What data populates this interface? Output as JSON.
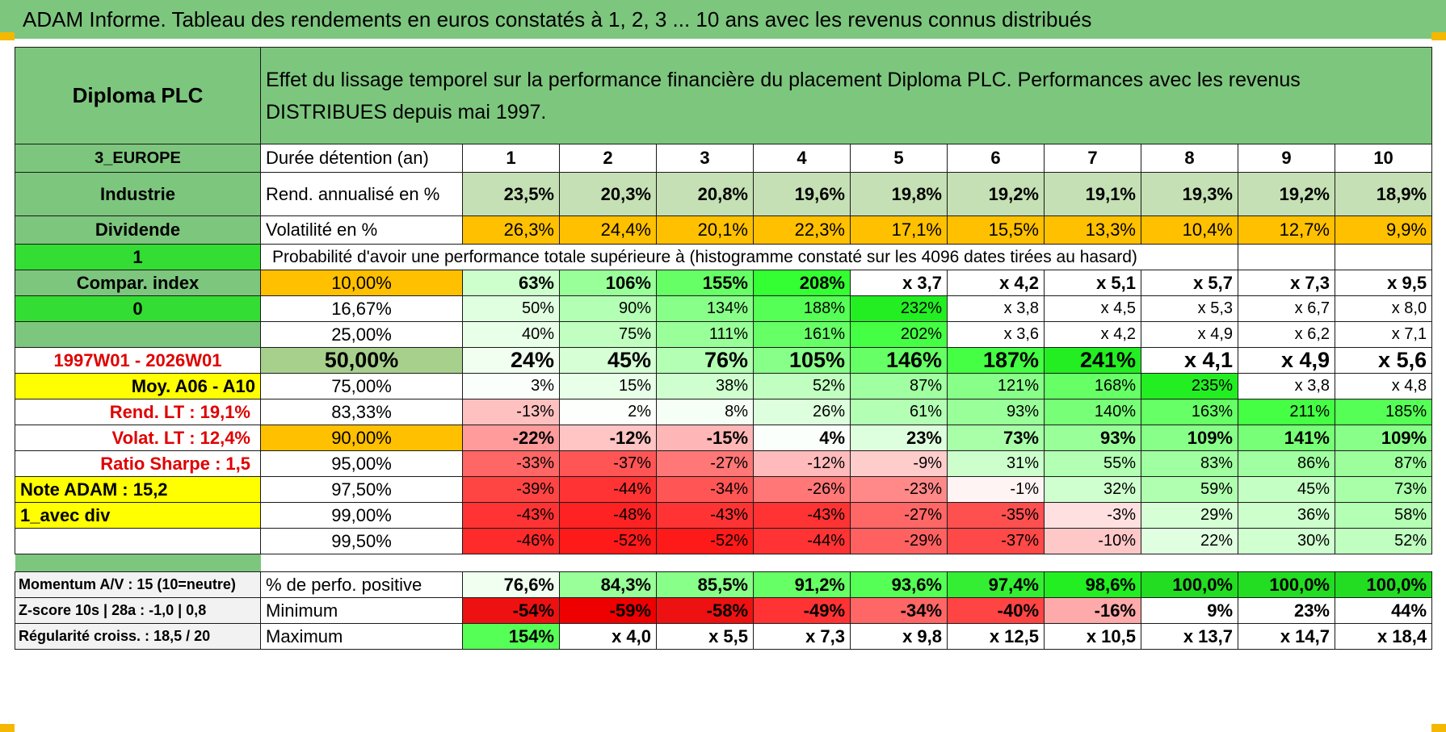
{
  "banner": "ADAM Informe. Tableau des rendements en euros constatés à 1, 2, 3 ... 10 ans avec les revenus connus distribués",
  "header": {
    "name": "Diploma PLC",
    "description": "Effet du lissage temporel sur la performance financière du placement Diploma PLC. Performances avec les revenus DISTRIBUES depuis mai 1997."
  },
  "sidebar": {
    "region": "3_EUROPE",
    "sector": "Industrie",
    "dividend": "Dividende",
    "one": "1",
    "compar": "Compar. index",
    "zero": "0",
    "period": "1997W01 - 2026W01",
    "moy": "Moy. A06 - A10",
    "rend_label": "Rend. LT :",
    "rend_value": "19,1%",
    "volat_label": "Volat. LT :",
    "volat_value": "12,4%",
    "sharpe_label": "Ratio Sharpe :",
    "sharpe_value": "1,5",
    "note": "Note ADAM : 15,2",
    "div_mode": "1_avec div",
    "momentum": "Momentum A/V : 15 (10=neutre)",
    "zscore": "Z-score 10s | 28a : -1,0 | 0,8",
    "regularite": "Régularité croiss. : 18,5 / 20"
  },
  "labels": {
    "duree": "Durée détention (an)",
    "rend": "Rend. annualisé en %",
    "vol": "Volatilité en %",
    "proba": "Probabilité d'avoir une performance totale supérieure à (histogramme constaté sur les 4096 dates tirées au hasard)",
    "positive": "% de perfo. positive",
    "minimum": "Minimum",
    "maximum": "Maximum"
  },
  "years": [
    "1",
    "2",
    "3",
    "4",
    "5",
    "6",
    "7",
    "8",
    "9",
    "10"
  ],
  "rend": [
    "23,5%",
    "20,3%",
    "20,8%",
    "19,6%",
    "19,8%",
    "19,2%",
    "19,1%",
    "19,3%",
    "19,2%",
    "18,9%"
  ],
  "vol": [
    "26,3%",
    "24,4%",
    "20,1%",
    "22,3%",
    "17,1%",
    "15,5%",
    "13,3%",
    "10,4%",
    "12,7%",
    "9,9%"
  ],
  "quantiles": [
    {
      "p": "10,00%",
      "values": [
        "63%",
        "106%",
        "155%",
        "208%",
        "x 3,7",
        "x 4,2",
        "x 5,1",
        "x 5,7",
        "x 7,3",
        "x 9,5"
      ]
    },
    {
      "p": "16,67%",
      "values": [
        "50%",
        "90%",
        "134%",
        "188%",
        "232%",
        "x 3,8",
        "x 4,5",
        "x 5,3",
        "x 6,7",
        "x 8,0"
      ]
    },
    {
      "p": "25,00%",
      "values": [
        "40%",
        "75%",
        "111%",
        "161%",
        "202%",
        "x 3,6",
        "x 4,2",
        "x 4,9",
        "x 6,2",
        "x 7,1"
      ]
    },
    {
      "p": "50,00%",
      "values": [
        "24%",
        "45%",
        "76%",
        "105%",
        "146%",
        "187%",
        "241%",
        "x 4,1",
        "x 4,9",
        "x 5,6"
      ]
    },
    {
      "p": "75,00%",
      "values": [
        "3%",
        "15%",
        "38%",
        "52%",
        "87%",
        "121%",
        "168%",
        "235%",
        "x 3,8",
        "x 4,8"
      ]
    },
    {
      "p": "83,33%",
      "values": [
        "-13%",
        "2%",
        "8%",
        "26%",
        "61%",
        "93%",
        "140%",
        "163%",
        "211%",
        "185%"
      ]
    },
    {
      "p": "90,00%",
      "values": [
        "-22%",
        "-12%",
        "-15%",
        "4%",
        "23%",
        "73%",
        "93%",
        "109%",
        "141%",
        "109%"
      ]
    },
    {
      "p": "95,00%",
      "values": [
        "-33%",
        "-37%",
        "-27%",
        "-12%",
        "-9%",
        "31%",
        "55%",
        "83%",
        "86%",
        "87%"
      ]
    },
    {
      "p": "97,50%",
      "values": [
        "-39%",
        "-44%",
        "-34%",
        "-26%",
        "-23%",
        "-1%",
        "32%",
        "59%",
        "45%",
        "73%"
      ]
    },
    {
      "p": "99,00%",
      "values": [
        "-43%",
        "-48%",
        "-43%",
        "-43%",
        "-27%",
        "-35%",
        "-3%",
        "29%",
        "36%",
        "58%"
      ]
    },
    {
      "p": "99,50%",
      "values": [
        "-46%",
        "-52%",
        "-52%",
        "-44%",
        "-29%",
        "-37%",
        "-10%",
        "22%",
        "30%",
        "52%"
      ]
    }
  ],
  "positive": [
    "76,6%",
    "84,3%",
    "85,5%",
    "91,2%",
    "93,6%",
    "97,4%",
    "98,6%",
    "100,0%",
    "100,0%",
    "100,0%"
  ],
  "minimum": [
    "-54%",
    "-59%",
    "-58%",
    "-49%",
    "-34%",
    "-40%",
    "-16%",
    "9%",
    "23%",
    "44%"
  ],
  "maximum": [
    "154%",
    "x 4,0",
    "x 5,5",
    "x 7,3",
    "x 9,8",
    "x 12,5",
    "x 10,5",
    "x 13,7",
    "x 14,7",
    "x 18,4"
  ],
  "colors": {
    "header_green": "#7dc67e",
    "orange": "#ffc000",
    "yellow": "#ffff00",
    "bright_green": "#33dd33",
    "red_text": "#e00000"
  },
  "cell_colors": {
    "rend": [
      "#c5e0b4",
      "#c5e0b4",
      "#c5e0b4",
      "#c5e0b4",
      "#c5e0b4",
      "#c5e0b4",
      "#c5e0b4",
      "#c5e0b4",
      "#c5e0b4",
      "#c5e0b4"
    ],
    "quantiles": [
      [
        "#ccffcc",
        "#99ff99",
        "#66ff66",
        "#33ff33",
        "#ffffff",
        "#ffffff",
        "#ffffff",
        "#ffffff",
        "#ffffff",
        "#ffffff"
      ],
      [
        "#e0ffe0",
        "#b3ffb3",
        "#88ff88",
        "#55ff55",
        "#22ee22",
        "#ffffff",
        "#ffffff",
        "#ffffff",
        "#ffffff",
        "#ffffff"
      ],
      [
        "#e8ffe8",
        "#c0ffc0",
        "#99ff99",
        "#66ff66",
        "#44ff44",
        "#ffffff",
        "#ffffff",
        "#ffffff",
        "#ffffff",
        "#ffffff"
      ],
      [
        "#f0fff0",
        "#d6ffd6",
        "#b3ffb3",
        "#88ff88",
        "#66ff66",
        "#44ff44",
        "#22ee22",
        "#ffffff",
        "#ffffff",
        "#ffffff"
      ],
      [
        "#fbfffb",
        "#e8ffe8",
        "#cfffcf",
        "#c0ffc0",
        "#a0ffa0",
        "#88ff88",
        "#66ff66",
        "#22ee22",
        "#ffffff",
        "#ffffff"
      ],
      [
        "#ffc0c0",
        "#fdfffd",
        "#f5fff5",
        "#ddffdd",
        "#b3ffb3",
        "#99ff99",
        "#77ff77",
        "#66ff66",
        "#44ff44",
        "#55ff55"
      ],
      [
        "#ff9b9b",
        "#ffc4c4",
        "#ffb6b6",
        "#fbfffb",
        "#ddffdd",
        "#a8ffa8",
        "#99ff99",
        "#88ff88",
        "#77ff77",
        "#88ff88"
      ],
      [
        "#ff6666",
        "#ff5555",
        "#ff7777",
        "#ffbbbb",
        "#ffcccc",
        "#ccffcc",
        "#b3ffb3",
        "#a0ffa0",
        "#a0ffa0",
        "#9cff9c"
      ],
      [
        "#ff4444",
        "#ff3333",
        "#ff5555",
        "#ff7777",
        "#ff8888",
        "#fff4f4",
        "#cfffcf",
        "#b0ffb0",
        "#c4ffc4",
        "#a8ffa8"
      ],
      [
        "#ff3333",
        "#ff2222",
        "#ff3333",
        "#ff3333",
        "#ff6666",
        "#ff5050",
        "#ffe0e0",
        "#d6ffd6",
        "#ccffcc",
        "#b3ffb3"
      ],
      [
        "#ff2a2a",
        "#ff1a1a",
        "#ff1a1a",
        "#ff3333",
        "#ff6161",
        "#ff4848",
        "#ffc8c8",
        "#e0ffe0",
        "#d0ffd0",
        "#c0ffc0"
      ]
    ],
    "positive": [
      "#f0fff0",
      "#99ff99",
      "#88ff88",
      "#66ff66",
      "#55ff55",
      "#33ee33",
      "#22ee22",
      "#22dd22",
      "#22dd22",
      "#22dd22"
    ],
    "minimum": [
      "#ee1111",
      "#ee0000",
      "#ee1111",
      "#ff3333",
      "#ff6666",
      "#ff4444",
      "#ffaaaa",
      "#ffffff",
      "#ffffff",
      "#ffffff"
    ],
    "maximum": [
      "#55ff55",
      "#ffffff",
      "#ffffff",
      "#ffffff",
      "#ffffff",
      "#ffffff",
      "#ffffff",
      "#ffffff",
      "#ffffff",
      "#ffffff"
    ]
  }
}
